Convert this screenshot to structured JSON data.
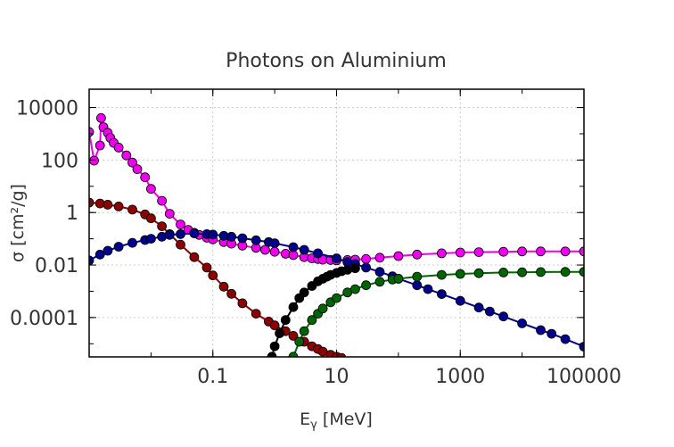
{
  "chart_data": {
    "type": "line",
    "title": "Photons on Aluminium",
    "xlabel_main": "E",
    "xlabel_sub": "γ",
    "xlabel_unit": " [MeV]",
    "ylabel": "σ [cm²/g]",
    "x_scale": "log",
    "y_scale": "log",
    "xlim": [
      0.001,
      100000
    ],
    "ylim": [
      3.16e-06,
      50000
    ],
    "x_ticks": [
      {
        "value": 0.1,
        "label": "0.1"
      },
      {
        "value": 10,
        "label": "10"
      },
      {
        "value": 1000,
        "label": "1000"
      },
      {
        "value": 100000,
        "label": "100000"
      }
    ],
    "y_ticks": [
      {
        "value": 10000,
        "label": "10000"
      },
      {
        "value": 100,
        "label": "100"
      },
      {
        "value": 1,
        "label": "1"
      },
      {
        "value": 0.01,
        "label": "0.01"
      },
      {
        "value": 0.0001,
        "label": "0.0001"
      }
    ],
    "grid": true,
    "legend": "none",
    "series": [
      {
        "color": "#ee00ee",
        "x": [
          0.001,
          0.0012,
          0.0015,
          0.00156,
          0.0017,
          0.002,
          0.0022,
          0.0025,
          0.003,
          0.004,
          0.005,
          0.006,
          0.008,
          0.01,
          0.015,
          0.02,
          0.03,
          0.04,
          0.05,
          0.06,
          0.08,
          0.1,
          0.15,
          0.2,
          0.3,
          0.5,
          0.7,
          1,
          1.5,
          2,
          3,
          4,
          5,
          6,
          8,
          10,
          15,
          20,
          30,
          50,
          100,
          200,
          500,
          1000,
          2000,
          5000,
          10000,
          20000,
          50000,
          100000
        ],
        "y": [
          1180,
          95,
          360,
          4000,
          1800,
          1100,
          700,
          450,
          300,
          150,
          80,
          45,
          22,
          8,
          2.8,
          0.9,
          0.35,
          0.22,
          0.17,
          0.14,
          0.11,
          0.095,
          0.075,
          0.065,
          0.055,
          0.045,
          0.038,
          0.032,
          0.027,
          0.024,
          0.02,
          0.018,
          0.017,
          0.016,
          0.0155,
          0.015,
          0.0155,
          0.016,
          0.017,
          0.019,
          0.022,
          0.025,
          0.028,
          0.03,
          0.031,
          0.032,
          0.033,
          0.033,
          0.033,
          0.033
        ]
      },
      {
        "color": "#8b0000",
        "x": [
          0.001,
          0.0015,
          0.002,
          0.003,
          0.005,
          0.008,
          0.01,
          0.015,
          0.02,
          0.03,
          0.05,
          0.08,
          0.1,
          0.15,
          0.2,
          0.3,
          0.5,
          0.8,
          1,
          1.5,
          2,
          3,
          4,
          5,
          6,
          8,
          10,
          12
        ],
        "y": [
          2.4,
          2.2,
          2.0,
          1.7,
          1.3,
          0.85,
          0.6,
          0.3,
          0.15,
          0.06,
          0.02,
          0.008,
          0.004,
          0.0015,
          0.0008,
          0.00035,
          0.00014,
          7e-05,
          5e-05,
          3e-05,
          2e-05,
          1.2e-05,
          8e-06,
          6.3e-06,
          5e-06,
          3.8e-06,
          3.2e-06,
          2.9e-06
        ]
      },
      {
        "color": "#00008b",
        "x": [
          0.001,
          0.0015,
          0.002,
          0.003,
          0.005,
          0.008,
          0.01,
          0.015,
          0.02,
          0.03,
          0.05,
          0.08,
          0.1,
          0.15,
          0.2,
          0.3,
          0.5,
          0.8,
          1,
          2,
          3,
          5,
          10,
          15,
          20,
          30,
          50,
          80,
          100,
          200,
          300,
          500,
          1000,
          2000,
          3000,
          5000,
          10000,
          20000,
          30000,
          50000,
          100000
        ],
        "y": [
          0.015,
          0.025,
          0.035,
          0.05,
          0.07,
          0.09,
          0.1,
          0.12,
          0.14,
          0.15,
          0.16,
          0.15,
          0.145,
          0.13,
          0.12,
          0.105,
          0.088,
          0.075,
          0.068,
          0.048,
          0.038,
          0.028,
          0.018,
          0.013,
          0.011,
          0.008,
          0.0055,
          0.0037,
          0.003,
          0.0017,
          0.0012,
          0.00078,
          0.00043,
          0.00024,
          0.00017,
          0.00011,
          6e-05,
          3.3e-05,
          2.4e-05,
          1.5e-05,
          7.8e-06
        ]
      },
      {
        "color": "#000000",
        "x": [
          0.9,
          1,
          1.2,
          1.5,
          2,
          2.5,
          3,
          4,
          5,
          6,
          7,
          8,
          10,
          12,
          15,
          20
        ],
        "y": [
          3.2e-06,
          8e-06,
          2.5e-05,
          8e-05,
          0.00025,
          0.00055,
          0.0009,
          0.0016,
          0.0024,
          0.003,
          0.0036,
          0.0042,
          0.005,
          0.0058,
          0.0066,
          0.0075
        ]
      },
      {
        "color": "#006400",
        "x": [
          2,
          2.5,
          3,
          4,
          5,
          6,
          8,
          10,
          15,
          20,
          30,
          50,
          80,
          100,
          200,
          500,
          1000,
          2000,
          5000,
          10000,
          20000,
          50000,
          100000
        ],
        "y": [
          3.2e-06,
          1.2e-05,
          3e-05,
          8e-05,
          0.00014,
          0.00022,
          0.00038,
          0.00055,
          0.0009,
          0.0012,
          0.0017,
          0.0023,
          0.0028,
          0.003,
          0.0036,
          0.0042,
          0.0046,
          0.0049,
          0.0052,
          0.0053,
          0.0054,
          0.0055,
          0.0055
        ]
      }
    ]
  }
}
